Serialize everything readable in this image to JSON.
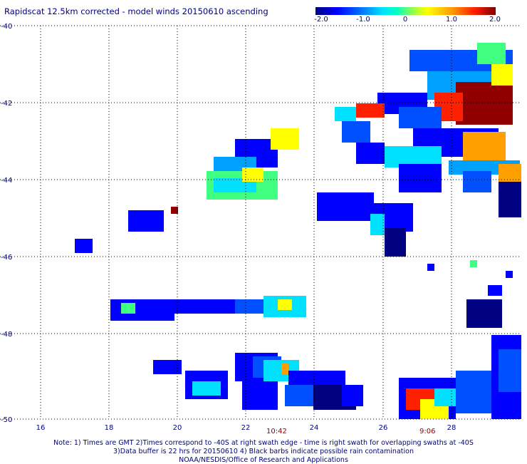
{
  "title": "Rapidscat 12.5km corrected - model winds 20150610 ascending",
  "colorbar": {
    "ticks": [
      "-2.0",
      "-1.0",
      "0",
      "1.0",
      "2.0"
    ],
    "min": -2.0,
    "max": 2.0
  },
  "axes": {
    "x_labels": [
      "16",
      "18",
      "20",
      "22",
      "24",
      "26",
      "28"
    ],
    "y_labels": [
      "-40",
      "-42",
      "-44",
      "-46",
      "-48",
      "-50"
    ]
  },
  "time_labels": {
    "t1": "10:42",
    "t2": "9:06"
  },
  "notes": {
    "line1": "Note: 1) Times are GMT 2)Times correspond to -40S at right swath edge - time is right swath for overlapping swaths at -40S",
    "line2": "3)Data buffer is 22 hrs for 20150610 4) Black barbs indicate possible rain contamination",
    "line3": "NOAA/NESDIS/Office of Research and Applications"
  },
  "colors": {
    "text": "#000080",
    "time": "#a00000",
    "grid": "#000000"
  }
}
